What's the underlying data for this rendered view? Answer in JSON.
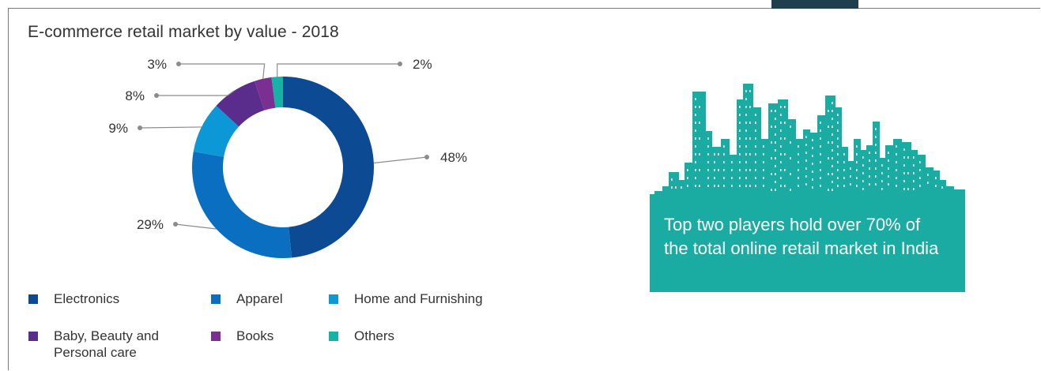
{
  "chart_data": {
    "type": "pie",
    "donut": true,
    "title": "E-commerce retail market by value - 2018",
    "categories": [
      "Electronics",
      "Apparel",
      "Home and Furnishing",
      "Baby, Beauty and Personal care",
      "Books",
      "Others"
    ],
    "values": [
      48,
      29,
      9,
      8,
      3,
      2
    ],
    "data_labels": [
      "48%",
      "29%",
      "9%",
      "8%",
      "3%",
      "2%"
    ],
    "colors": [
      "#0c4a94",
      "#0a6ec1",
      "#0c98d6",
      "#5a2d8c",
      "#7b2f93",
      "#16b2a6"
    ],
    "legend_position": "bottom"
  },
  "callout": {
    "text": "Top two players hold over 70% of the total online retail market in India",
    "color": "#1aaba3",
    "icon": "city-skyline-icon"
  },
  "colors": {
    "frame": "#7a7a7a",
    "tab": "#1f3f4f",
    "leader": "#8c8c8c"
  }
}
